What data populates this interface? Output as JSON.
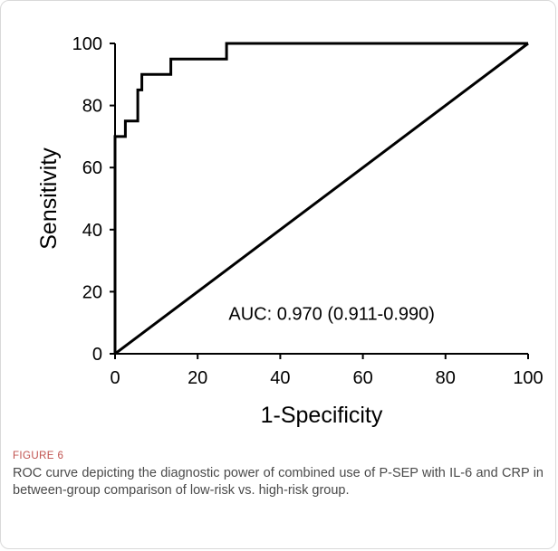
{
  "chart_data": {
    "type": "line",
    "xlabel": "1-Specificity",
    "ylabel": "Sensitivity",
    "xlim": [
      0,
      100
    ],
    "ylim": [
      0,
      100
    ],
    "xticks": [
      "0",
      "20",
      "40",
      "60",
      "80",
      "100"
    ],
    "yticks": [
      "0",
      "20",
      "40",
      "60",
      "80",
      "100"
    ],
    "grid": false,
    "annotation": "AUC: 0.970 (0.911-0.990)",
    "series": [
      {
        "type": "step",
        "x": [
          0,
          0,
          0,
          2.5,
          2.5,
          5.5,
          5.5,
          6.5,
          6.5,
          13.5,
          13.5,
          27,
          27,
          100
        ],
        "y": [
          0,
          25,
          70,
          70,
          75,
          75,
          85,
          85,
          90,
          90,
          95,
          95,
          100,
          100
        ]
      },
      {
        "type": "diagonal",
        "x": [
          0,
          100
        ],
        "y": [
          0,
          100
        ]
      }
    ]
  },
  "caption": {
    "label": "FIGURE 6",
    "text": "ROC curve depicting the diagnostic power of combined use of P-SEP with IL-6 and CRP in between-group comparison of low-risk vs. high-risk group."
  },
  "colors": {
    "line": "#000000",
    "caption_label": "#c0504d",
    "caption_text": "#4a4a4a",
    "border": "#d9d9d9"
  }
}
